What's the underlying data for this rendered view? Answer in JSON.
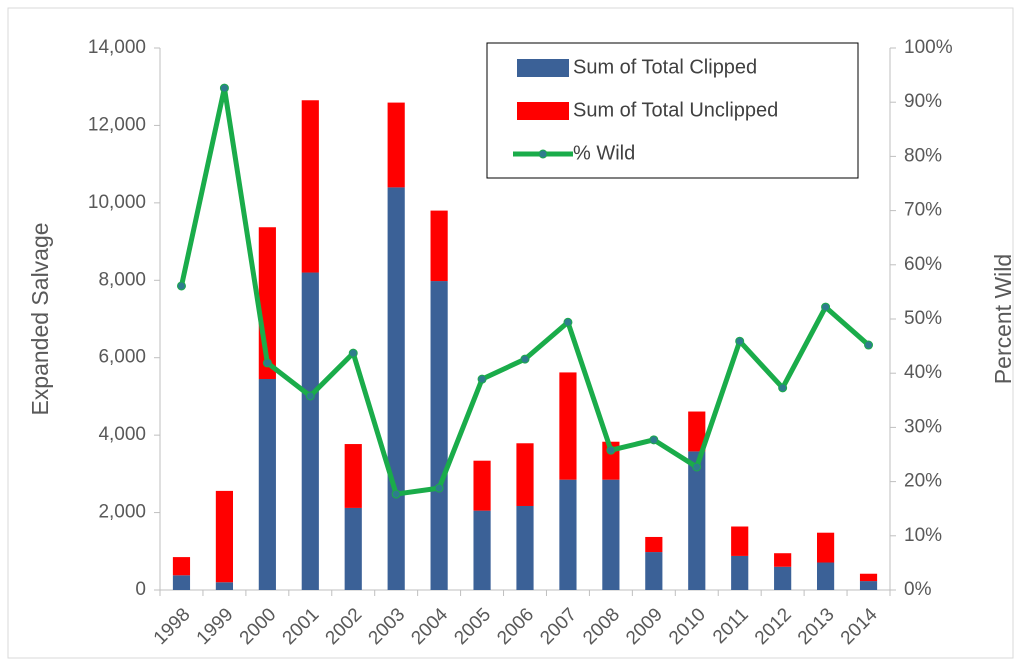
{
  "chart_data": {
    "type": "bar",
    "stacked": true,
    "categories": [
      "1998",
      "1999",
      "2000",
      "2001",
      "2002",
      "2003",
      "2004",
      "2005",
      "2006",
      "2007",
      "2008",
      "2009",
      "2010",
      "2011",
      "2012",
      "2013",
      "2014"
    ],
    "series": [
      {
        "name": "Sum of Total Clipped",
        "type": "bar",
        "color": "#3b6197",
        "values": [
          380,
          200,
          5450,
          8200,
          2120,
          10400,
          7980,
          2050,
          2170,
          2850,
          2850,
          980,
          3580,
          880,
          600,
          710,
          230
        ]
      },
      {
        "name": "Sum of Total Unclipped",
        "type": "bar",
        "color": "#ff0000",
        "values": [
          470,
          2360,
          3920,
          4450,
          1650,
          2190,
          1820,
          1290,
          1620,
          2770,
          980,
          390,
          1030,
          760,
          350,
          770,
          190
        ]
      },
      {
        "name": "% Wild",
        "type": "line",
        "axis": "y2",
        "color": "#1aac4a",
        "marker_color": "#2e7d8c",
        "values": [
          56.1,
          92.6,
          41.9,
          35.8,
          43.7,
          17.7,
          18.8,
          38.9,
          42.6,
          49.4,
          25.8,
          27.7,
          22.7,
          45.9,
          37.3,
          52.2,
          45.2
        ]
      }
    ],
    "ylabel": "Expanded Salvage",
    "y2label": "Percent Wild",
    "ylim": [
      0,
      14000
    ],
    "yticks": [
      0,
      {
        "value": 2000,
        "label": "2,000"
      },
      {
        "value": 4000,
        "label": "4,000"
      },
      {
        "value": 6000,
        "label": "6,000"
      },
      {
        "value": 8000,
        "label": "8,000"
      },
      {
        "value": 10000,
        "label": "10,000"
      },
      {
        "value": 12000,
        "label": "12,000"
      },
      {
        "value": 14000,
        "label": "14,000"
      }
    ],
    "y2lim": [
      0,
      100
    ],
    "y2ticks": [
      {
        "value": 0,
        "label": "0%"
      },
      {
        "value": 10,
        "label": "10%"
      },
      {
        "value": 20,
        "label": "20%"
      },
      {
        "value": 30,
        "label": "30%"
      },
      {
        "value": 40,
        "label": "40%"
      },
      {
        "value": 50,
        "label": "50%"
      },
      {
        "value": 60,
        "label": "60%"
      },
      {
        "value": 70,
        "label": "70%"
      },
      {
        "value": 80,
        "label": "80%"
      },
      {
        "value": 90,
        "label": "90%"
      },
      {
        "value": 100,
        "label": "100%"
      }
    ],
    "grid": false,
    "legend": "upper right"
  }
}
